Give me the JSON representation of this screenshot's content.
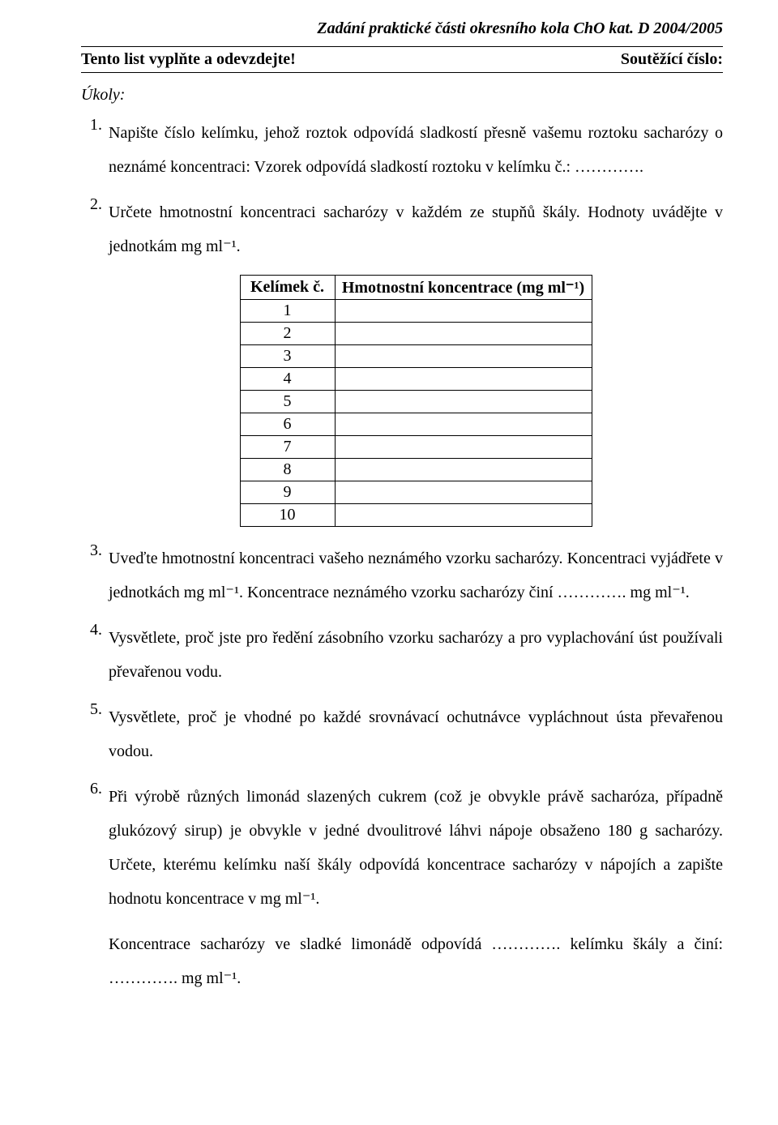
{
  "header": {
    "title": "Zadání praktické části okresního kola ChO kat. D 2004/2005",
    "instruction_left": "Tento list vyplňte a odevzdejte!",
    "instruction_right": "Soutěžící číslo:"
  },
  "ukoly_label": "Úkoly:",
  "table": {
    "col1_header": "Kelímek č.",
    "col2_header_html": "Hmotnostní koncentrace (mg ml⁻¹)",
    "rows": [
      "1",
      "2",
      "3",
      "4",
      "5",
      "6",
      "7",
      "8",
      "9",
      "10"
    ],
    "values": [
      "",
      "",
      "",
      "",
      "",
      "",
      "",
      "",
      "",
      ""
    ]
  },
  "tasks": {
    "t1": {
      "num": "1.",
      "p1": "Napište číslo kelímku, jehož roztok odpovídá sladkostí přesně vašemu roztoku sacharózy o neznámé koncentraci:  Vzorek odpovídá sladkostí roztoku v kelímku č.: …………."
    },
    "t2": {
      "num": "2.",
      "p1": "Určete hmotnostní koncentraci sacharózy v každém ze stupňů škály. Hodnoty uvádějte v jednotkám mg ml⁻¹."
    },
    "t3": {
      "num": "3.",
      "p1": "Uveďte hmotnostní koncentraci vašeho neznámého vzorku sacharózy. Koncentraci vyjádřete v jednotkách mg ml⁻¹. Koncentrace neznámého vzorku sacharózy činí …………. mg ml⁻¹."
    },
    "t4": {
      "num": "4.",
      "p1": "Vysvětlete, proč jste pro ředění zásobního vzorku sacharózy a pro vyplachování úst používali převařenou vodu."
    },
    "t5": {
      "num": "5.",
      "p1": "Vysvětlete, proč je vhodné po každé srovnávací ochutnávce vypláchnout ústa převařenou vodou."
    },
    "t6": {
      "num": "6.",
      "p1": "Při výrobě různých limonád slazených cukrem (což je obvykle právě sacharóza, případně glukózový sirup) je obvykle v jedné dvoulitrové láhvi nápoje obsaženo 180 g sacharózy. Určete, kterému kelímku naší škály odpovídá koncentrace sacharózy v nápojích a zapište hodnotu koncentrace v mg ml⁻¹.",
      "p2": "Koncentrace sacharózy ve sladké limonádě odpovídá …………. kelímku škály a činí: …………. mg ml⁻¹."
    }
  }
}
